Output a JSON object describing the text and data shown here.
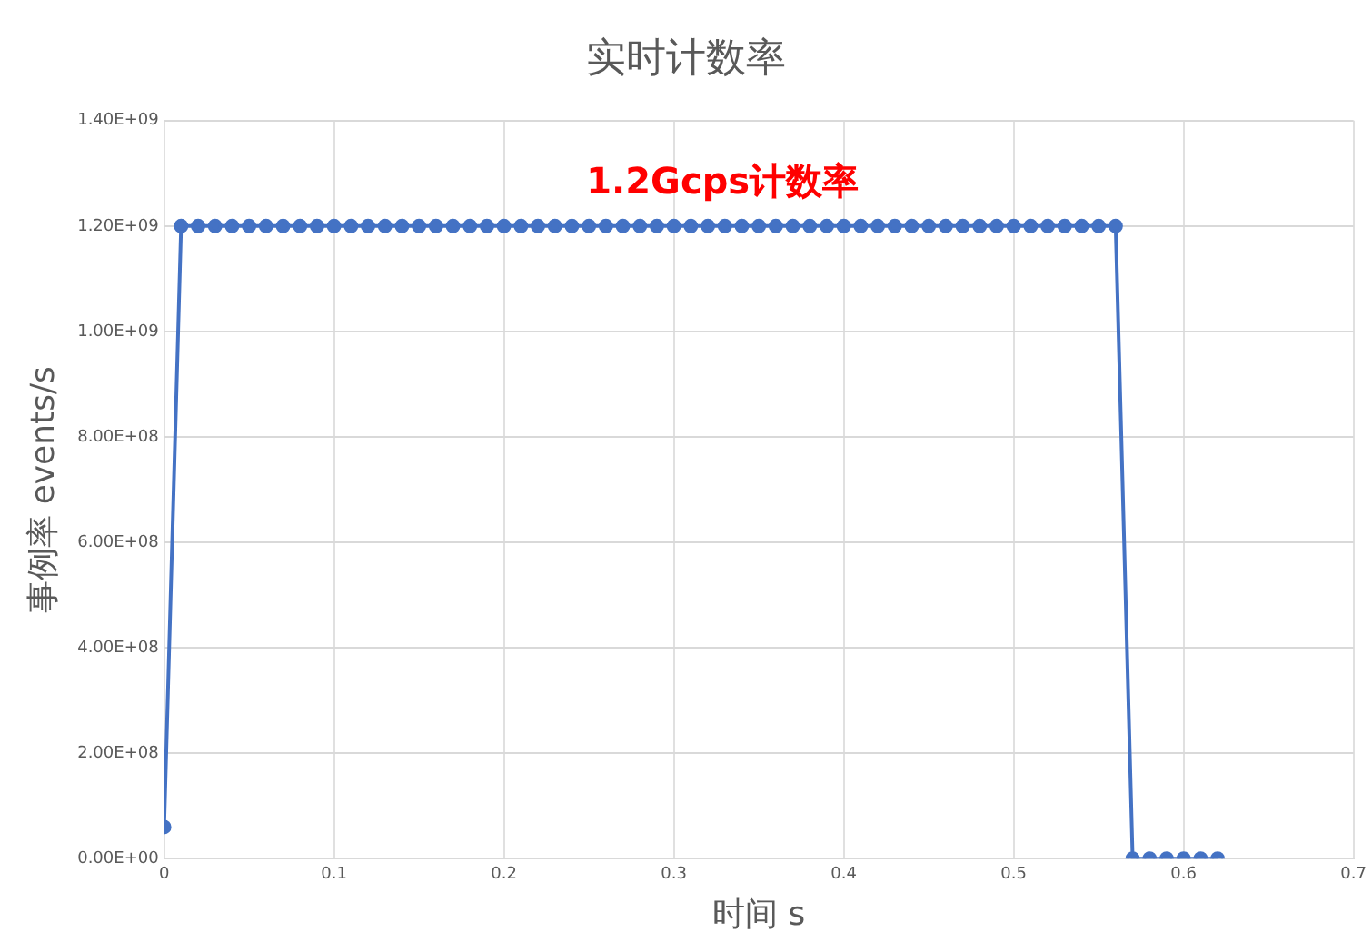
{
  "chart_data": {
    "type": "line",
    "title": "实时计数率",
    "xlabel": "时间 s",
    "ylabel": "事例率 events/s",
    "x": [
      0,
      0.01,
      0.02,
      0.03,
      0.04,
      0.05,
      0.06,
      0.07,
      0.08,
      0.09,
      0.1,
      0.11,
      0.12,
      0.13,
      0.14,
      0.15,
      0.16,
      0.17,
      0.18,
      0.19,
      0.2,
      0.21,
      0.22,
      0.23,
      0.24,
      0.25,
      0.26,
      0.27,
      0.28,
      0.29,
      0.3,
      0.31,
      0.32,
      0.33,
      0.34,
      0.35,
      0.36,
      0.37,
      0.38,
      0.39,
      0.4,
      0.41,
      0.42,
      0.43,
      0.44,
      0.45,
      0.46,
      0.47,
      0.48,
      0.49,
      0.5,
      0.51,
      0.52,
      0.53,
      0.54,
      0.55,
      0.56,
      0.57,
      0.58,
      0.59,
      0.6,
      0.61,
      0.62
    ],
    "series": [
      {
        "color": "#4472c4",
        "values": [
          60000000,
          1200000000,
          1200000000,
          1200000000,
          1200000000,
          1200000000,
          1200000000,
          1200000000,
          1200000000,
          1200000000,
          1200000000,
          1200000000,
          1200000000,
          1200000000,
          1200000000,
          1200000000,
          1200000000,
          1200000000,
          1200000000,
          1200000000,
          1200000000,
          1200000000,
          1200000000,
          1200000000,
          1200000000,
          1200000000,
          1200000000,
          1200000000,
          1200000000,
          1200000000,
          1200000000,
          1200000000,
          1200000000,
          1200000000,
          1200000000,
          1200000000,
          1200000000,
          1200000000,
          1200000000,
          1200000000,
          1200000000,
          1200000000,
          1200000000,
          1200000000,
          1200000000,
          1200000000,
          1200000000,
          1200000000,
          1200000000,
          1200000000,
          1200000000,
          1200000000,
          1200000000,
          1200000000,
          1200000000,
          1200000000,
          1200000000,
          0,
          0,
          0,
          0,
          0,
          0
        ]
      }
    ],
    "xlim": [
      0,
      0.7
    ],
    "xticks": [
      0,
      0.1,
      0.2,
      0.3,
      0.4,
      0.5,
      0.6,
      0.7
    ],
    "ylim": [
      0,
      1400000000
    ],
    "yticks": [
      {
        "value": 0,
        "label": "0.00E+00"
      },
      {
        "value": 200000000,
        "label": "2.00E+08"
      },
      {
        "value": 400000000,
        "label": "4.00E+08"
      },
      {
        "value": 600000000,
        "label": "6.00E+08"
      },
      {
        "value": 800000000,
        "label": "8.00E+08"
      },
      {
        "value": 1000000000,
        "label": "1.00E+09"
      },
      {
        "value": 1200000000,
        "label": "1.20E+09"
      },
      {
        "value": 1400000000,
        "label": "1.40E+09"
      }
    ],
    "annotations": [
      "1.2Gcps计数率"
    ],
    "grid": true,
    "legend": false,
    "marker": "circle",
    "line_style": "solid"
  }
}
